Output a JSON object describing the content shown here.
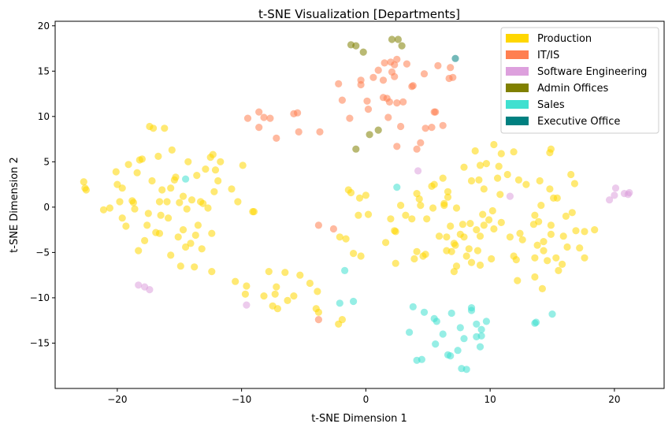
{
  "chart_data": {
    "type": "scatter",
    "title": "t-SNE Visualization [Departments]",
    "xlabel": "t-SNE Dimension 1",
    "ylabel": "t-SNE Dimension 2",
    "xlim": [
      -25,
      24
    ],
    "ylim": [
      -20,
      20.5
    ],
    "xticks": [
      -20,
      -10,
      0,
      10,
      20
    ],
    "yticks": [
      -15,
      -10,
      -5,
      0,
      5,
      10,
      15,
      20
    ],
    "grid": false,
    "legend_position": "top-right",
    "series": [
      {
        "name": "Production",
        "color": "#FFD700",
        "points": [
          [
            -22.7,
            2.8
          ],
          [
            -22.6,
            2.1
          ],
          [
            -22.5,
            1.9
          ],
          [
            -21.1,
            -0.3
          ],
          [
            -20.6,
            -0.1
          ],
          [
            -20.1,
            3.9
          ],
          [
            -20.0,
            2.5
          ],
          [
            -19.8,
            0.6
          ],
          [
            -19.6,
            -1.2
          ],
          [
            -19.6,
            2.1
          ],
          [
            -19.3,
            -2.1
          ],
          [
            -19.1,
            4.7
          ],
          [
            -18.8,
            0.7
          ],
          [
            -18.7,
            0.5
          ],
          [
            -18.6,
            -0.2
          ],
          [
            -18.4,
            3.8
          ],
          [
            -18.3,
            -4.8
          ],
          [
            -18.2,
            5.2
          ],
          [
            -18.0,
            5.3
          ],
          [
            -17.8,
            -3.7
          ],
          [
            -17.6,
            -2.0
          ],
          [
            -17.5,
            -0.7
          ],
          [
            -17.4,
            8.9
          ],
          [
            -17.2,
            2.9
          ],
          [
            -17.1,
            8.7
          ],
          [
            -16.9,
            -2.8
          ],
          [
            -16.7,
            5.6
          ],
          [
            -16.6,
            -2.9
          ],
          [
            -16.6,
            0.6
          ],
          [
            -16.5,
            -0.9
          ],
          [
            -16.4,
            1.9
          ],
          [
            -16.2,
            8.7
          ],
          [
            -16.0,
            0.6
          ],
          [
            -15.9,
            -1.2
          ],
          [
            -15.7,
            -5.3
          ],
          [
            -15.7,
            2.1
          ],
          [
            -15.6,
            6.3
          ],
          [
            -15.4,
            3.0
          ],
          [
            -15.3,
            3.3
          ],
          [
            -15.1,
            -3.3
          ],
          [
            -15.0,
            0.5
          ],
          [
            -14.9,
            -6.5
          ],
          [
            -14.7,
            -2.5
          ],
          [
            -14.7,
            1.2
          ],
          [
            -14.5,
            -4.4
          ],
          [
            -14.4,
            -0.2
          ],
          [
            -14.3,
            5.0
          ],
          [
            -14.1,
            -4.0
          ],
          [
            -14.0,
            0.8
          ],
          [
            -13.8,
            -6.6
          ],
          [
            -13.7,
            -3.1
          ],
          [
            -13.6,
            3.5
          ],
          [
            -13.5,
            -2.0
          ],
          [
            -13.3,
            0.6
          ],
          [
            -13.2,
            -4.6
          ],
          [
            -13.1,
            0.4
          ],
          [
            -12.9,
            4.2
          ],
          [
            -12.7,
            -0.1
          ],
          [
            -12.5,
            5.5
          ],
          [
            -12.4,
            -2.9
          ],
          [
            -12.4,
            -7.1
          ],
          [
            -12.3,
            5.8
          ],
          [
            -12.2,
            1.7
          ],
          [
            -12.1,
            4.1
          ],
          [
            -11.9,
            2.9
          ],
          [
            -11.7,
            5.0
          ],
          [
            -10.8,
            2.0
          ],
          [
            -10.5,
            -8.2
          ],
          [
            -10.3,
            0.6
          ],
          [
            -9.9,
            4.6
          ],
          [
            -9.7,
            -9.6
          ],
          [
            -9.6,
            -8.7
          ],
          [
            -9.1,
            -0.5
          ],
          [
            -9.0,
            -0.5
          ],
          [
            -8.2,
            -9.8
          ],
          [
            -7.8,
            -7.1
          ],
          [
            -7.5,
            -10.9
          ],
          [
            -7.3,
            -9.6
          ],
          [
            -7.2,
            -8.8
          ],
          [
            -7.1,
            -11.2
          ],
          [
            -6.5,
            -7.2
          ],
          [
            -6.3,
            -10.3
          ],
          [
            -5.8,
            -9.8
          ],
          [
            -5.3,
            -7.5
          ],
          [
            -4.5,
            -8.4
          ],
          [
            -4.0,
            -11.2
          ],
          [
            -3.9,
            -9.3
          ],
          [
            -3.8,
            -11.6
          ],
          [
            -2.2,
            -12.9
          ],
          [
            -2.1,
            -3.3
          ],
          [
            -1.9,
            -12.4
          ],
          [
            -1.6,
            -3.5
          ],
          [
            -1.4,
            1.9
          ],
          [
            -1.2,
            1.6
          ],
          [
            -1.0,
            -5.1
          ],
          [
            -0.6,
            -0.9
          ],
          [
            -0.5,
            1.0
          ],
          [
            -0.4,
            -5.4
          ],
          [
            0.0,
            1.3
          ],
          [
            0.2,
            -0.8
          ],
          [
            1.6,
            -3.9
          ],
          [
            2.0,
            -1.3
          ],
          [
            2.3,
            -2.6
          ],
          [
            2.4,
            -2.7
          ],
          [
            2.4,
            -6.2
          ],
          [
            2.8,
            0.2
          ],
          [
            3.2,
            -0.9
          ],
          [
            3.7,
            -1.3
          ],
          [
            3.9,
            -5.7
          ],
          [
            4.1,
            1.5
          ],
          [
            4.1,
            -4.9
          ],
          [
            4.3,
            0.9
          ],
          [
            4.4,
            0.2
          ],
          [
            4.6,
            -5.4
          ],
          [
            4.8,
            -5.2
          ],
          [
            4.9,
            -1.3
          ],
          [
            5.3,
            2.3
          ],
          [
            5.4,
            -0.1
          ],
          [
            5.5,
            2.5
          ],
          [
            5.9,
            -3.2
          ],
          [
            6.2,
            3.2
          ],
          [
            6.3,
            0.4
          ],
          [
            6.3,
            0.2
          ],
          [
            6.5,
            -3.3
          ],
          [
            6.5,
            -4.8
          ],
          [
            6.6,
            1.1
          ],
          [
            6.6,
            1.7
          ],
          [
            6.8,
            -2.1
          ],
          [
            6.9,
            -4.9
          ],
          [
            7.1,
            -7.1
          ],
          [
            7.1,
            -4.0
          ],
          [
            7.2,
            -4.2
          ],
          [
            7.3,
            -6.5
          ],
          [
            7.3,
            -0.1
          ],
          [
            7.6,
            -3.0
          ],
          [
            7.8,
            -1.9
          ],
          [
            7.9,
            -3.3
          ],
          [
            7.9,
            4.4
          ],
          [
            8.1,
            -5.4
          ],
          [
            8.3,
            -4.6
          ],
          [
            8.4,
            -1.8
          ],
          [
            8.5,
            2.9
          ],
          [
            8.5,
            -6.1
          ],
          [
            8.8,
            6.2
          ],
          [
            8.9,
            -2.5
          ],
          [
            9.0,
            -4.8
          ],
          [
            9.1,
            3.0
          ],
          [
            9.2,
            4.6
          ],
          [
            9.2,
            -3.2
          ],
          [
            9.2,
            -6.4
          ],
          [
            9.4,
            -0.8
          ],
          [
            9.5,
            2.0
          ],
          [
            9.5,
            -2.0
          ],
          [
            9.7,
            4.8
          ],
          [
            9.9,
            -1.4
          ],
          [
            10.1,
            -5.7
          ],
          [
            10.2,
            -0.4
          ],
          [
            10.3,
            6.9
          ],
          [
            10.3,
            -2.4
          ],
          [
            10.6,
            3.2
          ],
          [
            10.7,
            4.5
          ],
          [
            10.8,
            1.4
          ],
          [
            10.9,
            5.9
          ],
          [
            10.9,
            -1.7
          ],
          [
            11.4,
            3.6
          ],
          [
            11.6,
            -3.3
          ],
          [
            11.9,
            -5.4
          ],
          [
            11.9,
            6.1
          ],
          [
            12.1,
            -5.8
          ],
          [
            12.2,
            -8.1
          ],
          [
            12.3,
            3.0
          ],
          [
            12.4,
            -2.9
          ],
          [
            12.6,
            -3.6
          ],
          [
            12.9,
            2.5
          ],
          [
            13.5,
            -1.9
          ],
          [
            13.6,
            -0.9
          ],
          [
            13.6,
            -5.6
          ],
          [
            13.6,
            -7.7
          ],
          [
            13.8,
            -4.2
          ],
          [
            13.9,
            -1.6
          ],
          [
            14.0,
            2.9
          ],
          [
            14.1,
            0.2
          ],
          [
            14.2,
            -9.0
          ],
          [
            14.3,
            -3.8
          ],
          [
            14.3,
            -4.8
          ],
          [
            14.6,
            -5.9
          ],
          [
            14.8,
            6.0
          ],
          [
            14.8,
            2.0
          ],
          [
            14.9,
            6.4
          ],
          [
            14.9,
            -2.0
          ],
          [
            14.9,
            -3.0
          ],
          [
            15.1,
            1.0
          ],
          [
            15.3,
            -5.6
          ],
          [
            15.4,
            1.0
          ],
          [
            15.5,
            -7.0
          ],
          [
            15.8,
            -6.3
          ],
          [
            15.9,
            -3.2
          ],
          [
            16.1,
            -1.0
          ],
          [
            16.2,
            -4.4
          ],
          [
            16.5,
            3.6
          ],
          [
            16.6,
            -0.6
          ],
          [
            16.8,
            2.6
          ],
          [
            16.9,
            -2.6
          ],
          [
            17.2,
            -4.5
          ],
          [
            17.6,
            -2.7
          ],
          [
            17.6,
            -5.6
          ],
          [
            18.4,
            -2.5
          ]
        ]
      },
      {
        "name": "IT/IS",
        "color": "#FF7F50",
        "points": [
          [
            -9.5,
            9.8
          ],
          [
            -8.6,
            10.5
          ],
          [
            -8.6,
            8.8
          ],
          [
            -8.2,
            9.9
          ],
          [
            -7.7,
            9.8
          ],
          [
            -7.2,
            7.6
          ],
          [
            -5.8,
            10.3
          ],
          [
            -5.5,
            10.4
          ],
          [
            -5.4,
            8.3
          ],
          [
            -3.7,
            8.3
          ],
          [
            -3.8,
            -2.0
          ],
          [
            -3.8,
            -12.4
          ],
          [
            -2.6,
            -2.4
          ],
          [
            -2.2,
            13.6
          ],
          [
            -1.9,
            11.8
          ],
          [
            -1.3,
            9.8
          ],
          [
            -0.4,
            13.5
          ],
          [
            -0.4,
            14.0
          ],
          [
            0.1,
            11.7
          ],
          [
            0.2,
            10.8
          ],
          [
            0.6,
            14.3
          ],
          [
            1.0,
            15.1
          ],
          [
            1.4,
            12.1
          ],
          [
            1.4,
            14.0
          ],
          [
            1.5,
            15.9
          ],
          [
            1.7,
            12.0
          ],
          [
            1.8,
            9.9
          ],
          [
            1.9,
            11.6
          ],
          [
            2.0,
            16.0
          ],
          [
            2.1,
            14.9
          ],
          [
            2.3,
            14.4
          ],
          [
            2.3,
            15.7
          ],
          [
            2.5,
            6.7
          ],
          [
            2.5,
            11.5
          ],
          [
            2.5,
            16.3
          ],
          [
            2.8,
            8.9
          ],
          [
            3.0,
            11.6
          ],
          [
            3.3,
            15.8
          ],
          [
            3.7,
            13.3
          ],
          [
            3.8,
            13.4
          ],
          [
            4.1,
            6.4
          ],
          [
            4.4,
            7.1
          ],
          [
            4.7,
            14.7
          ],
          [
            4.8,
            8.7
          ],
          [
            5.3,
            8.8
          ],
          [
            5.5,
            10.5
          ],
          [
            5.6,
            10.5
          ],
          [
            5.8,
            15.6
          ],
          [
            6.2,
            9.0
          ],
          [
            6.7,
            14.2
          ],
          [
            6.8,
            15.4
          ],
          [
            7.0,
            14.3
          ]
        ]
      },
      {
        "name": "Software Engineering",
        "color": "#DDA0DD",
        "points": [
          [
            -18.3,
            -8.6
          ],
          [
            -17.8,
            -8.8
          ],
          [
            -17.4,
            -9.1
          ],
          [
            -9.6,
            -10.8
          ],
          [
            4.2,
            4.0
          ],
          [
            11.6,
            1.2
          ],
          [
            19.6,
            0.8
          ],
          [
            20.0,
            1.3
          ],
          [
            20.1,
            2.1
          ],
          [
            20.8,
            1.5
          ],
          [
            21.2,
            1.6
          ],
          [
            21.1,
            1.4
          ]
        ]
      },
      {
        "name": "Admin Offices",
        "color": "#808000",
        "points": [
          [
            -1.2,
            17.9
          ],
          [
            -0.8,
            17.8
          ],
          [
            -0.2,
            17.1
          ],
          [
            2.1,
            18.5
          ],
          [
            2.6,
            18.5
          ],
          [
            2.9,
            17.8
          ],
          [
            0.3,
            8.0
          ],
          [
            1.0,
            8.5
          ],
          [
            -0.8,
            6.4
          ]
        ]
      },
      {
        "name": "Sales",
        "color": "#40E0D0",
        "points": [
          [
            -14.5,
            3.1
          ],
          [
            -1.7,
            -7.0
          ],
          [
            -2.1,
            -10.6
          ],
          [
            -1.0,
            -10.4
          ],
          [
            2.5,
            2.2
          ],
          [
            3.5,
            -13.8
          ],
          [
            3.8,
            -11.0
          ],
          [
            4.1,
            -16.9
          ],
          [
            4.5,
            -16.8
          ],
          [
            4.7,
            -11.6
          ],
          [
            5.5,
            -12.3
          ],
          [
            5.7,
            -12.6
          ],
          [
            5.6,
            -15.1
          ],
          [
            6.2,
            -14.0
          ],
          [
            6.6,
            -16.3
          ],
          [
            6.8,
            -16.4
          ],
          [
            6.9,
            -11.7
          ],
          [
            7.4,
            -15.8
          ],
          [
            7.6,
            -13.3
          ],
          [
            7.7,
            -17.8
          ],
          [
            7.9,
            -14.5
          ],
          [
            8.1,
            -17.9
          ],
          [
            8.5,
            -11.1
          ],
          [
            8.5,
            -11.4
          ],
          [
            8.9,
            -12.9
          ],
          [
            8.9,
            -14.3
          ],
          [
            9.3,
            -14.2
          ],
          [
            9.3,
            -13.5
          ],
          [
            9.7,
            -12.6
          ],
          [
            9.2,
            -15.4
          ],
          [
            13.6,
            -12.8
          ],
          [
            15.0,
            -11.8
          ],
          [
            13.7,
            -12.7
          ]
        ]
      },
      {
        "name": "Executive Office",
        "color": "#008080",
        "points": [
          [
            7.2,
            16.4
          ]
        ]
      }
    ]
  }
}
